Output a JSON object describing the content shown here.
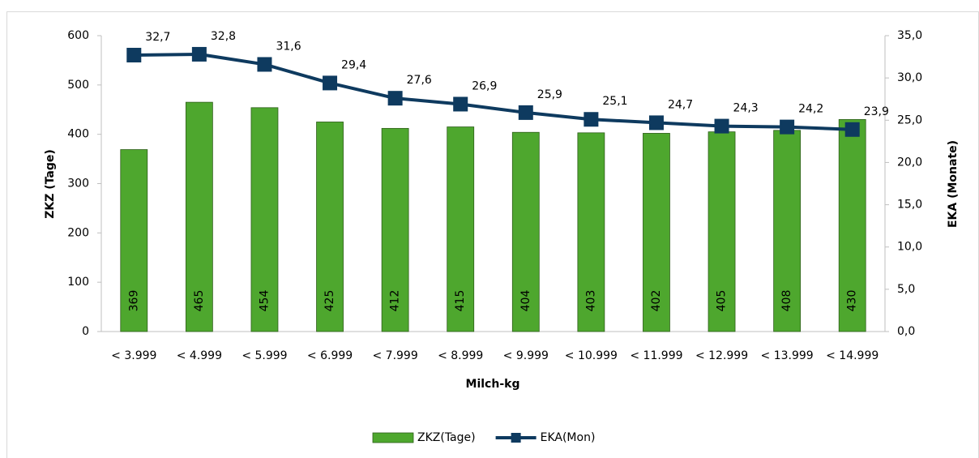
{
  "chart_data": {
    "type": "bar-line",
    "x_label": "Milch-kg",
    "y_label": "ZKZ (Tage)",
    "y2_label": "EKA (Monate)",
    "categories": [
      "< 3.999",
      "< 4.999",
      "< 5.999",
      "< 6.999",
      "< 7.999",
      "< 8.999",
      "< 9.999",
      "< 10.999",
      "< 11.999",
      "< 12.999",
      "< 13.999",
      "< 14.999"
    ],
    "series": [
      {
        "name": "ZKZ(Tage)",
        "type": "bar",
        "color": "#4ea72e",
        "values": [
          369,
          465,
          454,
          425,
          412,
          415,
          404,
          403,
          402,
          405,
          408,
          430
        ]
      },
      {
        "name": "EKA(Mon)",
        "type": "line",
        "axis": "y2",
        "color": "#0e3a5f",
        "values": [
          32.7,
          32.8,
          31.6,
          29.4,
          27.6,
          26.9,
          25.9,
          25.1,
          24.7,
          24.3,
          24.2,
          23.9
        ],
        "value_labels": [
          "32,7",
          "32,8",
          "31,6",
          "29,4",
          "27,6",
          "26,9",
          "25,9",
          "25,1",
          "24,7",
          "24,3",
          "24,2",
          "23,9"
        ]
      }
    ],
    "ylim": [
      0,
      600
    ],
    "yticks": [
      0,
      100,
      200,
      300,
      400,
      500,
      600
    ],
    "y2lim": [
      0,
      35
    ],
    "y2ticks": [
      {
        "value": 0,
        "label": "0,0"
      },
      {
        "value": 5,
        "label": "5,0"
      },
      {
        "value": 10,
        "label": "10,0"
      },
      {
        "value": 15,
        "label": "15,0"
      },
      {
        "value": 20,
        "label": "20,0"
      },
      {
        "value": 25,
        "label": "25,0"
      },
      {
        "value": 30,
        "label": "30,0"
      },
      {
        "value": 35,
        "label": "35,0"
      }
    ],
    "grid": false,
    "legend": "bottom"
  }
}
